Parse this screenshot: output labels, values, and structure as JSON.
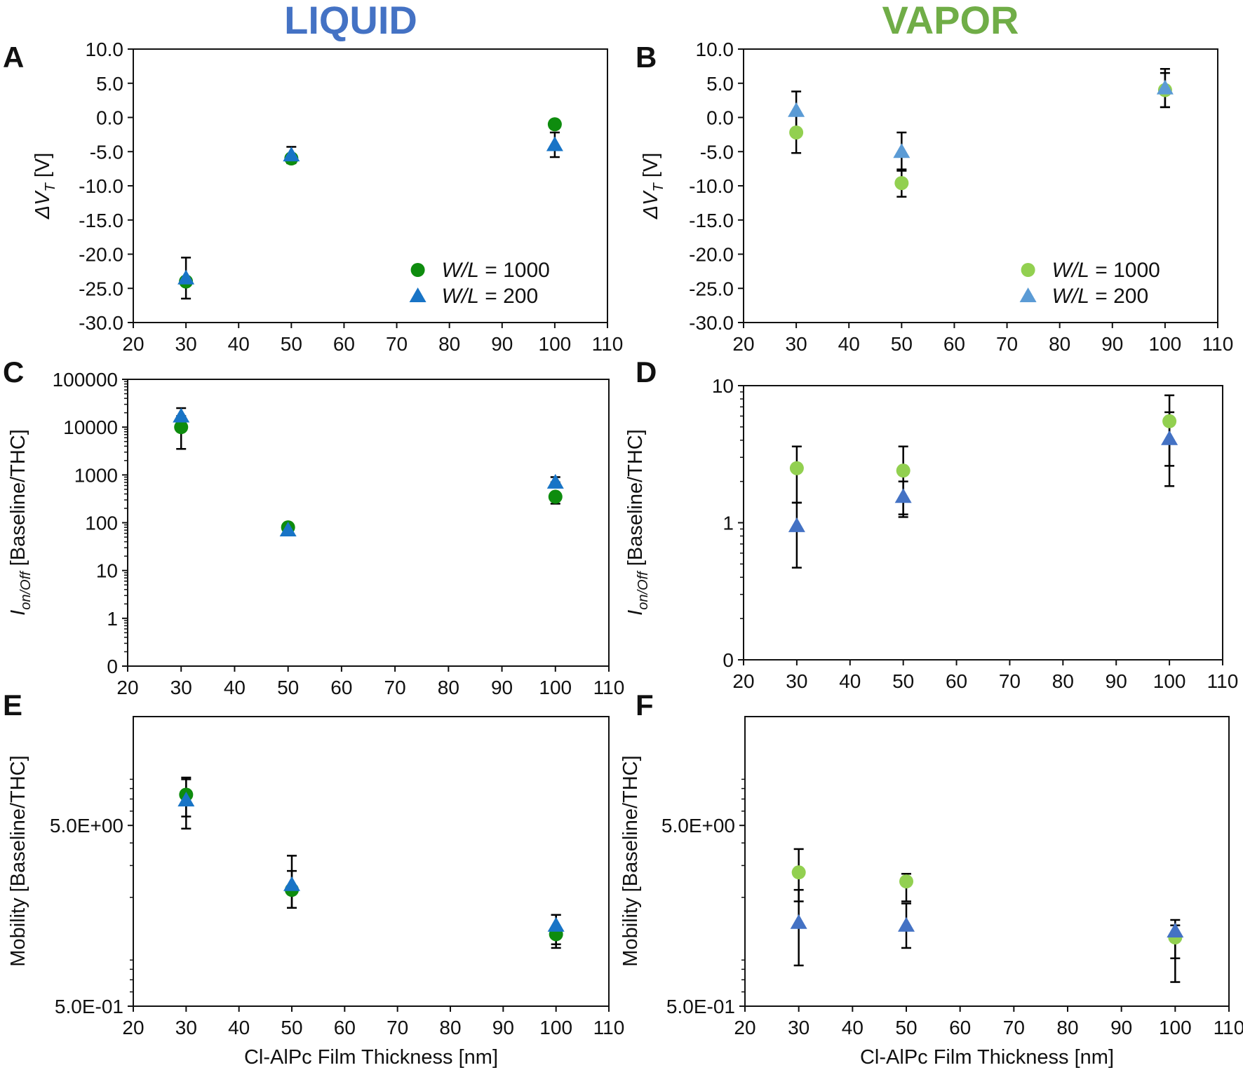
{
  "column_titles": [
    {
      "text": "LIQUID",
      "color": "#4472C4"
    },
    {
      "text": "VAPOR",
      "color": "#70AD47"
    }
  ],
  "x_axis_title": "Cl-AlPc Film Thickness [nm]",
  "colors": {
    "liquid_circle": "#0E8C0E",
    "liquid_triangle": "#1874C6",
    "vapor_circle": "#92D050",
    "vapor_triangle_B": "#5B9BD5",
    "vapor_triangle_DF": "#4472C4",
    "error_bar": "#000000"
  },
  "chart_data": [
    {
      "panel": "A",
      "type": "scatter",
      "title": "",
      "xlabel": "",
      "ylabel": "ΔV_T [V]",
      "xlim": [
        20,
        110
      ],
      "xticks": [
        20,
        30,
        40,
        50,
        60,
        70,
        80,
        90,
        100,
        110
      ],
      "ylim": [
        -30,
        10
      ],
      "yscale": "linear",
      "yticks": [
        10,
        5,
        0,
        -5,
        -10,
        -15,
        -20,
        -25,
        -30
      ],
      "ytick_labels": [
        "10.0",
        "5.0",
        "0.0",
        "-5.0",
        "-10.0",
        "-15.0",
        "-20.0",
        "-25.0",
        "-30.0"
      ],
      "legend": "bottom-right",
      "series": [
        {
          "name": "W/L = 1000",
          "marker": "circle",
          "color": "#0E8C0E",
          "x": [
            30,
            50,
            100
          ],
          "y": [
            -24.0,
            -6.0,
            -1.0
          ],
          "err": [
            0,
            0,
            0
          ]
        },
        {
          "name": "W/L = 200",
          "marker": "triangle",
          "color": "#1874C6",
          "x": [
            30,
            50,
            100
          ],
          "y": [
            -23.5,
            -5.5,
            -4.0
          ],
          "err": [
            3.0,
            1.2,
            1.8
          ]
        }
      ]
    },
    {
      "panel": "B",
      "type": "scatter",
      "title": "",
      "xlabel": "",
      "ylabel": "ΔV_T [V]",
      "xlim": [
        20,
        110
      ],
      "xticks": [
        20,
        30,
        40,
        50,
        60,
        70,
        80,
        90,
        100,
        110
      ],
      "ylim": [
        -30,
        10
      ],
      "yscale": "linear",
      "yticks": [
        10,
        5,
        0,
        -5,
        -10,
        -15,
        -20,
        -25,
        -30
      ],
      "ytick_labels": [
        "10.0",
        "5.0",
        "0.0",
        "-5.0",
        "-10.0",
        "-15.0",
        "-20.0",
        "-25.0",
        "-30.0"
      ],
      "legend": "bottom-right",
      "series": [
        {
          "name": "W/L = 1000",
          "marker": "circle",
          "color": "#92D050",
          "x": [
            30,
            50,
            100
          ],
          "y": [
            -2.2,
            -9.6,
            4.0
          ],
          "err": [
            3.0,
            2.0,
            2.5
          ]
        },
        {
          "name": "W/L = 200",
          "marker": "triangle",
          "color": "#5B9BD5",
          "x": [
            30,
            50,
            100
          ],
          "y": [
            1.0,
            -5.0,
            4.3
          ],
          "err": [
            2.8,
            2.8,
            2.8
          ]
        }
      ]
    },
    {
      "panel": "C",
      "type": "scatter",
      "title": "",
      "xlabel": "",
      "ylabel": "I_on/Off [Baseline/THC]",
      "xlim": [
        20,
        110
      ],
      "xticks": [
        20,
        30,
        40,
        50,
        60,
        70,
        80,
        90,
        100,
        110
      ],
      "ylim": [
        0.1,
        100000
      ],
      "yscale": "log",
      "yticks": [
        100000,
        10000,
        1000,
        100,
        10,
        1,
        0.1
      ],
      "ytick_labels": [
        "100000",
        "10000",
        "1000",
        "100",
        "10",
        "1",
        "0"
      ],
      "series": [
        {
          "name": "",
          "marker": "circle",
          "color": "#0E8C0E",
          "x": [
            30,
            50,
            100
          ],
          "y": [
            10000,
            80,
            350
          ],
          "err_low": [
            3500,
            0,
            250
          ],
          "err_high": [
            10000,
            0,
            350
          ]
        },
        {
          "name": "",
          "marker": "triangle",
          "color": "#1874C6",
          "x": [
            30,
            50,
            100
          ],
          "y": [
            17000,
            70,
            700
          ],
          "err_low": [
            17000,
            70,
            700
          ],
          "err_high": [
            25000,
            70,
            900
          ]
        }
      ]
    },
    {
      "panel": "D",
      "type": "scatter",
      "title": "",
      "xlabel": "",
      "ylabel": "I_on/Off [Baseline/THC]",
      "xlim": [
        20,
        110
      ],
      "xticks": [
        20,
        30,
        40,
        50,
        60,
        70,
        80,
        90,
        100,
        110
      ],
      "ylim": [
        0.1,
        10
      ],
      "yscale": "log",
      "yticks": [
        10,
        1,
        0.1
      ],
      "ytick_labels": [
        "10",
        "1",
        "0"
      ],
      "series": [
        {
          "name": "",
          "marker": "circle",
          "color": "#92D050",
          "x": [
            30,
            50,
            100
          ],
          "y": [
            2.5,
            2.4,
            5.5
          ],
          "err_low": [
            1.4,
            1.1,
            2.6
          ],
          "err_high": [
            3.6,
            3.6,
            8.5
          ]
        },
        {
          "name": "",
          "marker": "triangle",
          "color": "#4472C4",
          "x": [
            30,
            50,
            100
          ],
          "y": [
            0.95,
            1.55,
            4.1
          ],
          "err_low": [
            0.47,
            1.15,
            1.85
          ],
          "err_high": [
            1.4,
            2.0,
            6.4
          ]
        }
      ]
    },
    {
      "panel": "E",
      "type": "scatter",
      "title": "",
      "xlabel": "Cl-AlPc Film Thickness [nm]",
      "ylabel": "Mobility [Baseline/THC]",
      "xlim": [
        20,
        110
      ],
      "xticks": [
        20,
        30,
        40,
        50,
        60,
        70,
        80,
        90,
        100,
        110
      ],
      "ylim": [
        0.5,
        20
      ],
      "yscale": "log",
      "yticks": [
        5.0,
        0.5
      ],
      "ytick_labels": [
        "5.0E+00",
        "5.0E-01"
      ],
      "series": [
        {
          "name": "",
          "marker": "circle",
          "color": "#0E8C0E",
          "x": [
            30,
            50,
            100
          ],
          "y": [
            7.4,
            2.2,
            1.25
          ],
          "err_low": [
            4.8,
            1.75,
            1.05
          ],
          "err_high": [
            9.2,
            2.8,
            1.6
          ]
        },
        {
          "name": "",
          "marker": "triangle",
          "color": "#1874C6",
          "x": [
            30,
            50,
            100
          ],
          "y": [
            6.9,
            2.35,
            1.4
          ],
          "err_low": [
            5.6,
            1.75,
            1.1
          ],
          "err_high": [
            9.0,
            3.4,
            1.6
          ]
        }
      ]
    },
    {
      "panel": "F",
      "type": "scatter",
      "title": "",
      "xlabel": "Cl-AlPc Film Thickness [nm]",
      "ylabel": "Mobility [Baseline/THC]",
      "xlim": [
        20,
        110
      ],
      "xticks": [
        20,
        30,
        40,
        50,
        60,
        70,
        80,
        90,
        100,
        110
      ],
      "ylim": [
        0.5,
        20
      ],
      "yscale": "log",
      "yticks": [
        5.0,
        0.5
      ],
      "ytick_labels": [
        "5.0E+00",
        "5.0E-01"
      ],
      "series": [
        {
          "name": "",
          "marker": "circle",
          "color": "#92D050",
          "x": [
            30,
            50,
            100
          ],
          "y": [
            2.75,
            2.45,
            1.2
          ],
          "err_low": [
            1.9,
            1.9,
            0.68
          ],
          "err_high": [
            3.7,
            2.7,
            1.4
          ]
        },
        {
          "name": "",
          "marker": "triangle",
          "color": "#4472C4",
          "x": [
            30,
            50,
            100
          ],
          "y": [
            1.45,
            1.4,
            1.3
          ],
          "err_low": [
            0.84,
            1.05,
            0.92
          ],
          "err_high": [
            2.2,
            1.85,
            1.5
          ]
        }
      ]
    }
  ]
}
